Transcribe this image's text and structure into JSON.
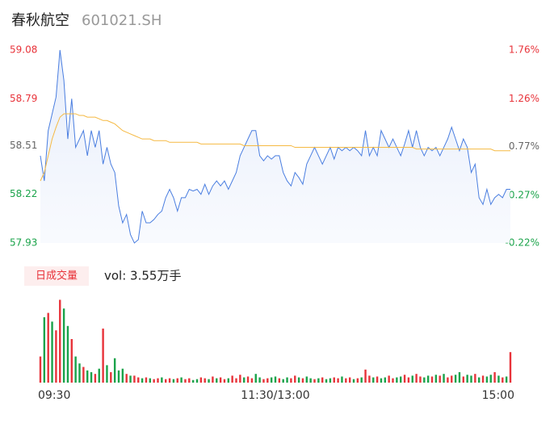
{
  "header": {
    "name": "春秋航空",
    "code": "601021.SH"
  },
  "chart_data": {
    "type": "intraday",
    "xlim": [
      0,
      120
    ],
    "xticks": [
      {
        "value": 0,
        "label": "09:30"
      },
      {
        "value": 60,
        "label": "11:30/13:00"
      },
      {
        "value": 120,
        "label": "15:00"
      }
    ],
    "ylim": [
      57.93,
      59.08
    ],
    "yticks": [
      59.08,
      58.79,
      58.51,
      58.22,
      57.93
    ],
    "ytick_colors": [
      "#e8333a",
      "#e8333a",
      "#666666",
      "#1aa34a",
      "#1aa34a"
    ],
    "y2lim": [
      -0.22,
      1.76
    ],
    "y2ticks": [
      {
        "value": 1.76,
        "label": "1.76%"
      },
      {
        "value": 1.26,
        "label": "1.26%"
      },
      {
        "value": 0.77,
        "label": "0.77%"
      },
      {
        "value": 0.27,
        "label": "0.27%"
      },
      {
        "value": -0.22,
        "label": "-0.22%"
      }
    ],
    "y2tick_colors": [
      "#e8333a",
      "#e8333a",
      "#666666",
      "#1aa34a",
      "#1aa34a"
    ],
    "series": [
      {
        "color": "#4a7ee0",
        "values": [
          58.45,
          58.3,
          58.6,
          58.7,
          58.8,
          59.08,
          58.9,
          58.55,
          58.79,
          58.5,
          58.55,
          58.6,
          58.45,
          58.6,
          58.5,
          58.6,
          58.4,
          58.5,
          58.4,
          58.35,
          58.15,
          58.05,
          58.1,
          57.98,
          57.93,
          57.95,
          58.12,
          58.05,
          58.05,
          58.07,
          58.1,
          58.12,
          58.2,
          58.25,
          58.2,
          58.12,
          58.2,
          58.2,
          58.25,
          58.24,
          58.25,
          58.22,
          58.28,
          58.22,
          58.27,
          58.3,
          58.27,
          58.3,
          58.25,
          58.3,
          58.35,
          58.45,
          58.5,
          58.55,
          58.6,
          58.6,
          58.45,
          58.42,
          58.45,
          58.43,
          58.45,
          58.45,
          58.35,
          58.3,
          58.27,
          58.35,
          58.32,
          58.28,
          58.4,
          58.45,
          58.5,
          58.45,
          58.4,
          58.45,
          58.5,
          58.43,
          58.5,
          58.48,
          58.5,
          58.48,
          58.5,
          58.48,
          58.45,
          58.6,
          58.45,
          58.5,
          58.45,
          58.6,
          58.55,
          58.5,
          58.55,
          58.5,
          58.45,
          58.52,
          58.6,
          58.5,
          58.6,
          58.5,
          58.45,
          58.5,
          58.48,
          58.5,
          58.45,
          58.5,
          58.55,
          58.62,
          58.55,
          58.48,
          58.55,
          58.5,
          58.35,
          58.4,
          58.2,
          58.16,
          58.25,
          58.16,
          58.2,
          58.22,
          58.2,
          58.25,
          58.25
        ]
      },
      {
        "color": "#f5b942",
        "values": [
          58.3,
          58.35,
          58.45,
          58.55,
          58.62,
          58.68,
          58.7,
          58.7,
          58.7,
          58.7,
          58.69,
          58.69,
          58.68,
          58.68,
          58.68,
          58.67,
          58.66,
          58.66,
          58.65,
          58.64,
          58.62,
          58.6,
          58.59,
          58.58,
          58.57,
          58.56,
          58.55,
          58.55,
          58.55,
          58.54,
          58.54,
          58.54,
          58.54,
          58.53,
          58.53,
          58.53,
          58.53,
          58.53,
          58.53,
          58.53,
          58.53,
          58.52,
          58.52,
          58.52,
          58.52,
          58.52,
          58.52,
          58.52,
          58.52,
          58.52,
          58.52,
          58.52,
          58.51,
          58.51,
          58.51,
          58.51,
          58.51,
          58.51,
          58.51,
          58.51,
          58.51,
          58.51,
          58.51,
          58.51,
          58.51,
          58.5,
          58.5,
          58.5,
          58.5,
          58.5,
          58.5,
          58.5,
          58.5,
          58.5,
          58.5,
          58.5,
          58.5,
          58.5,
          58.5,
          58.5,
          58.5,
          58.5,
          58.5,
          58.5,
          58.5,
          58.5,
          58.5,
          58.5,
          58.5,
          58.5,
          58.5,
          58.5,
          58.5,
          58.5,
          58.5,
          58.5,
          58.49,
          58.49,
          58.49,
          58.49,
          58.49,
          58.49,
          58.49,
          58.49,
          58.49,
          58.49,
          58.49,
          58.49,
          58.49,
          58.49,
          58.49,
          58.49,
          58.49,
          58.49,
          58.49,
          58.49,
          58.48,
          58.48,
          58.48,
          58.48,
          58.48
        ]
      }
    ],
    "volume_label": "日成交量",
    "volume_summary": "vol: 3.55万手",
    "volume_ylim": [
      0,
      100
    ],
    "volume_up_color": "#e8333a",
    "volume_down_color": "#1aa34a",
    "volume": [
      30,
      75,
      80,
      70,
      60,
      95,
      85,
      65,
      50,
      30,
      22,
      18,
      14,
      12,
      10,
      16,
      62,
      20,
      12,
      28,
      14,
      16,
      10,
      8,
      8,
      6,
      5,
      6,
      5,
      4,
      5,
      6,
      4,
      5,
      4,
      5,
      6,
      4,
      5,
      3,
      4,
      6,
      5,
      4,
      7,
      5,
      6,
      4,
      5,
      8,
      5,
      9,
      6,
      7,
      5,
      10,
      6,
      4,
      5,
      6,
      7,
      5,
      4,
      6,
      5,
      8,
      6,
      5,
      7,
      5,
      4,
      5,
      6,
      4,
      5,
      6,
      5,
      7,
      5,
      6,
      4,
      5,
      6,
      15,
      8,
      6,
      7,
      5,
      6,
      8,
      5,
      6,
      7,
      9,
      6,
      8,
      10,
      7,
      6,
      8,
      7,
      9,
      8,
      10,
      6,
      8,
      9,
      12,
      7,
      9,
      8,
      10,
      6,
      8,
      7,
      9,
      12,
      8,
      6,
      7,
      35
    ],
    "volume_direction": [
      "up",
      "down",
      "up",
      "down",
      "up",
      "up",
      "down",
      "down",
      "up",
      "down",
      "down",
      "up",
      "down",
      "down",
      "up",
      "down",
      "up",
      "down",
      "up",
      "down",
      "down",
      "down",
      "up",
      "down",
      "up",
      "up",
      "down",
      "up",
      "down",
      "up",
      "up",
      "down",
      "up",
      "up",
      "down",
      "up",
      "down",
      "up",
      "up",
      "down",
      "down",
      "up",
      "up",
      "down",
      "up",
      "down",
      "up",
      "up",
      "down",
      "up",
      "up",
      "up",
      "down",
      "up",
      "up",
      "down",
      "down",
      "up",
      "up",
      "down",
      "down",
      "up",
      "down",
      "down",
      "up",
      "up",
      "down",
      "up",
      "down",
      "down",
      "up",
      "down",
      "up",
      "down",
      "down",
      "up",
      "up",
      "down",
      "up",
      "up",
      "down",
      "up",
      "down",
      "up",
      "up",
      "down",
      "up",
      "down",
      "down",
      "up",
      "up",
      "down",
      "down",
      "up",
      "up",
      "down",
      "up",
      "up",
      "down",
      "down",
      "up",
      "down",
      "up",
      "down",
      "up",
      "up",
      "down",
      "down",
      "up",
      "down",
      "down",
      "up",
      "down",
      "up",
      "down",
      "down",
      "up",
      "down",
      "up",
      "down",
      "up"
    ]
  }
}
